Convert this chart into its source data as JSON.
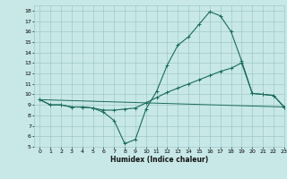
{
  "xlabel": "Humidex (Indice chaleur)",
  "background_color": "#c8e8e8",
  "grid_color": "#a0c8c8",
  "line_color": "#1a6b5a",
  "xlim": [
    -0.5,
    23
  ],
  "ylim": [
    5,
    18.5
  ],
  "xticks": [
    0,
    1,
    2,
    3,
    4,
    5,
    6,
    7,
    8,
    9,
    10,
    11,
    12,
    13,
    14,
    15,
    16,
    17,
    18,
    19,
    20,
    21,
    22,
    23
  ],
  "yticks": [
    5,
    6,
    7,
    8,
    9,
    10,
    11,
    12,
    13,
    14,
    15,
    16,
    17,
    18
  ],
  "line1_x": [
    0,
    1,
    2,
    3,
    4,
    5,
    6,
    7,
    8,
    9,
    10,
    11,
    12,
    13,
    14,
    15,
    16,
    17,
    18,
    19,
    20,
    21,
    22,
    23
  ],
  "line1_y": [
    9.5,
    9.0,
    9.0,
    8.8,
    8.8,
    8.7,
    8.3,
    7.5,
    5.3,
    5.7,
    8.6,
    10.3,
    12.8,
    14.7,
    15.5,
    16.7,
    17.9,
    17.5,
    16.0,
    13.2,
    10.1,
    10.0,
    9.9,
    8.8
  ],
  "line2_x": [
    0,
    23
  ],
  "line2_y": [
    9.5,
    8.8
  ],
  "line3_x": [
    0,
    1,
    2,
    3,
    4,
    5,
    6,
    7,
    8,
    9,
    10,
    11,
    12,
    13,
    14,
    15,
    16,
    17,
    18,
    19,
    20,
    21,
    22,
    23
  ],
  "line3_y": [
    9.5,
    9.0,
    9.0,
    8.8,
    8.8,
    8.7,
    8.5,
    8.5,
    8.6,
    8.7,
    9.2,
    9.7,
    10.2,
    10.6,
    11.0,
    11.4,
    11.8,
    12.2,
    12.5,
    13.0,
    10.1,
    10.0,
    9.9,
    8.8
  ]
}
